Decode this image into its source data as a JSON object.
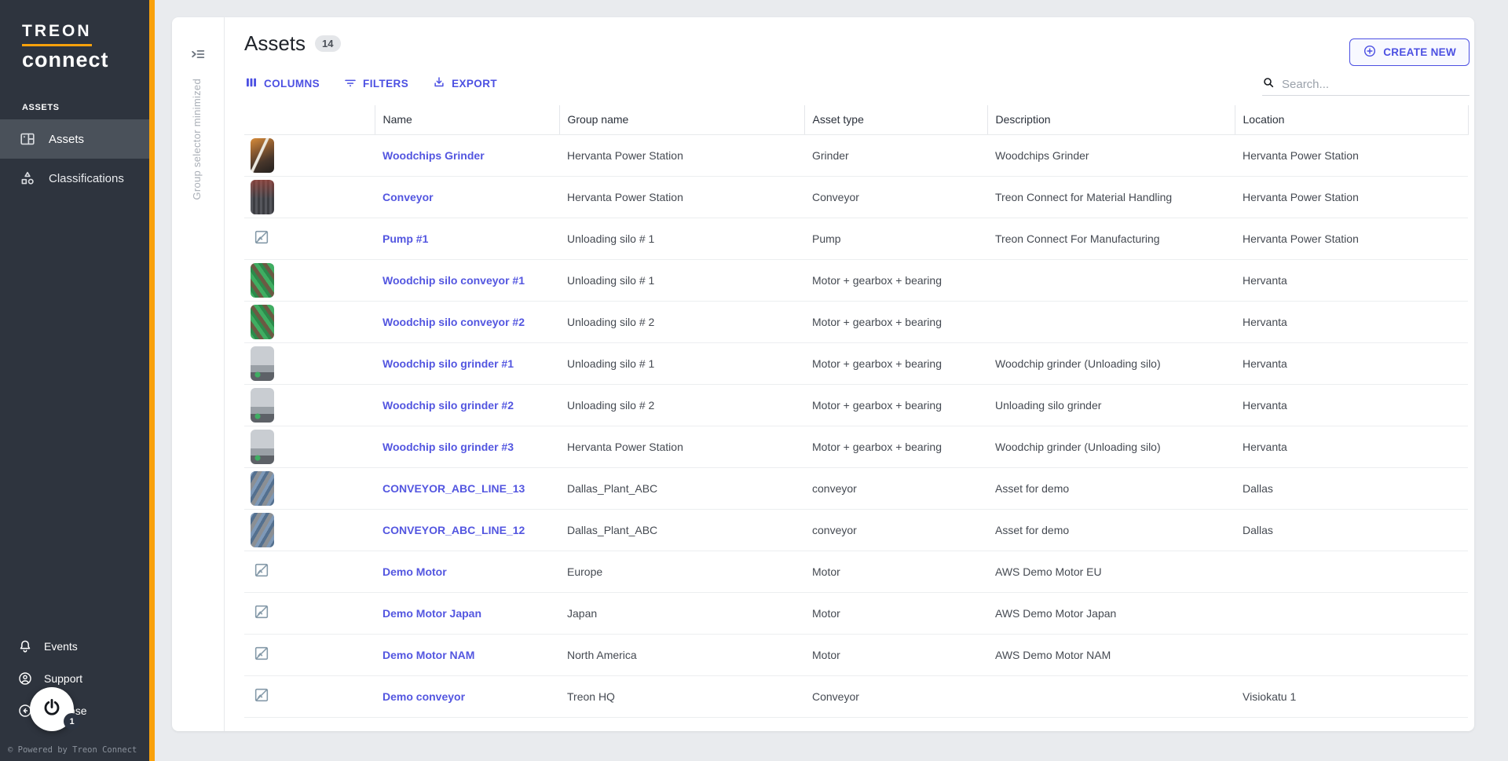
{
  "app": {
    "brand_line1": "TREON",
    "brand_line2": "connect",
    "footer": "© Powered by Treon Connect"
  },
  "sidebar": {
    "section_label": "ASSETS",
    "items": [
      {
        "label": "Assets",
        "icon": "assets-icon",
        "active": true
      },
      {
        "label": "Classifications",
        "icon": "classifications-icon",
        "active": false
      }
    ],
    "bottom_items": [
      {
        "label": "Events",
        "icon": "bell-icon"
      },
      {
        "label": "Support",
        "icon": "support-icon"
      },
      {
        "label": "Collapse",
        "icon": "collapse-icon"
      }
    ],
    "notification_badge": "1"
  },
  "group_selector": {
    "minimized_label": "Group selector minimized"
  },
  "header": {
    "title": "Assets",
    "count": "14",
    "create_button": "CREATE NEW",
    "search_placeholder": "Search...",
    "search_value": ""
  },
  "toolbar": {
    "columns": "COLUMNS",
    "filters": "FILTERS",
    "export": "EXPORT"
  },
  "table": {
    "columns": [
      "Name",
      "Group name",
      "Asset type",
      "Description",
      "Location"
    ],
    "rows": [
      {
        "name": "Woodchips Grinder",
        "group": "Hervanta Power Station",
        "type": "Grinder",
        "description": "Woodchips Grinder",
        "location": "Hervanta Power Station",
        "thumb": "grinder-orange"
      },
      {
        "name": "Conveyor",
        "group": "Hervanta Power Station",
        "type": "Conveyor",
        "description": "Treon Connect for Material Handling",
        "location": "Hervanta Power Station",
        "thumb": "conveyor-dark"
      },
      {
        "name": "Pump #1",
        "group": "Unloading silo # 1",
        "type": "Pump",
        "description": "Treon Connect For Manufacturing",
        "location": "Hervanta Power Station",
        "thumb": "none"
      },
      {
        "name": "Woodchip silo conveyor #1",
        "group": "Unloading silo # 1",
        "type": "Motor + gearbox + bearing",
        "description": "",
        "location": "Hervanta",
        "thumb": "conveyor-green"
      },
      {
        "name": "Woodchip silo conveyor #2",
        "group": "Unloading silo # 2",
        "type": "Motor + gearbox + bearing",
        "description": "",
        "location": "Hervanta",
        "thumb": "conveyor-green"
      },
      {
        "name": "Woodchip silo grinder #1",
        "group": "Unloading silo # 1",
        "type": "Motor + gearbox + bearing",
        "description": "Woodchip grinder (Unloading silo)",
        "location": "Hervanta",
        "thumb": "grinder-gray"
      },
      {
        "name": "Woodchip silo grinder #2",
        "group": "Unloading silo # 2",
        "type": "Motor + gearbox + bearing",
        "description": "Unloading silo grinder",
        "location": "Hervanta",
        "thumb": "grinder-gray"
      },
      {
        "name": "Woodchip silo grinder #3",
        "group": "Hervanta Power Station",
        "type": "Motor + gearbox + bearing",
        "description": "Woodchip grinder (Unloading silo)",
        "location": "Hervanta",
        "thumb": "grinder-gray"
      },
      {
        "name": "CONVEYOR_ABC_LINE_13",
        "group": "Dallas_Plant_ABC",
        "type": "conveyor",
        "description": "Asset for demo",
        "location": "Dallas",
        "thumb": "conveyor-blue"
      },
      {
        "name": "CONVEYOR_ABC_LINE_12",
        "group": "Dallas_Plant_ABC",
        "type": "conveyor",
        "description": "Asset for demo",
        "location": "Dallas",
        "thumb": "conveyor-blue"
      },
      {
        "name": "Demo Motor",
        "group": "Europe",
        "type": "Motor",
        "description": "AWS Demo Motor EU",
        "location": "",
        "thumb": "none"
      },
      {
        "name": "Demo Motor Japan",
        "group": "Japan",
        "type": "Motor",
        "description": "AWS Demo Motor Japan",
        "location": "",
        "thumb": "none"
      },
      {
        "name": "Demo Motor NAM",
        "group": "North America",
        "type": "Motor",
        "description": "AWS Demo Motor NAM",
        "location": "",
        "thumb": "none"
      },
      {
        "name": "Demo conveyor",
        "group": "Treon HQ",
        "type": "Conveyor",
        "description": "",
        "location": "Visiokatu 1",
        "thumb": "none"
      }
    ]
  },
  "colors": {
    "accent_orange": "#f9a10b",
    "indigo": "#4c50e2",
    "link": "#5356e0",
    "sidebar_bg": "#2e343e",
    "sidebar_active": "#4a515a"
  }
}
